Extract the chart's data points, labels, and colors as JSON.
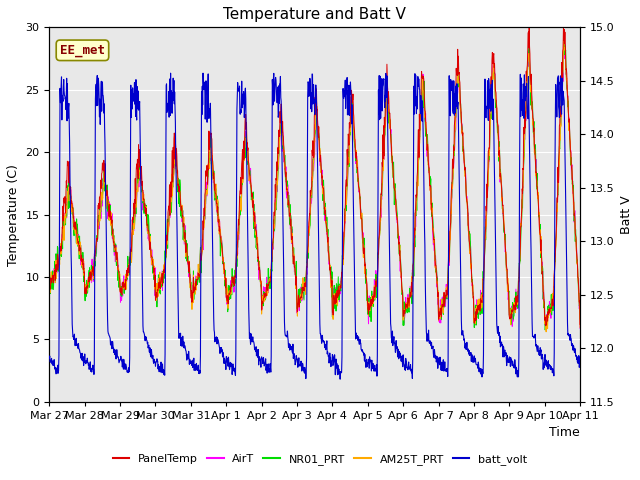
{
  "title": "Temperature and Batt V",
  "xlabel": "Time",
  "ylabel_left": "Temperature (C)",
  "ylabel_right": "Batt V",
  "ylim_left": [
    0,
    30
  ],
  "ylim_right": [
    11.5,
    15.0
  ],
  "yticks_left": [
    0,
    5,
    10,
    15,
    20,
    25,
    30
  ],
  "yticks_right": [
    11.5,
    12.0,
    12.5,
    13.0,
    13.5,
    14.0,
    14.5,
    15.0
  ],
  "xtick_labels": [
    "Mar 27",
    "Mar 28",
    "Mar 29",
    "Mar 30",
    "Mar 31",
    "Apr 1",
    "Apr 2",
    "Apr 3",
    "Apr 4",
    "Apr 5",
    "Apr 6",
    "Apr 7",
    "Apr 8",
    "Apr 9",
    "Apr 10",
    "Apr 11"
  ],
  "colors": {
    "PanelTemp": "#dd0000",
    "AirT": "#ff00ff",
    "NR01_PRT": "#00dd00",
    "AM25T_PRT": "#ffaa00",
    "batt_volt": "#0000cc"
  },
  "annotation_text": "EE_met",
  "annotation_color": "#880000",
  "annotation_bg": "#ffffcc",
  "plot_bg": "#e8e8e8",
  "title_fontsize": 11,
  "axis_fontsize": 9,
  "tick_fontsize": 8
}
